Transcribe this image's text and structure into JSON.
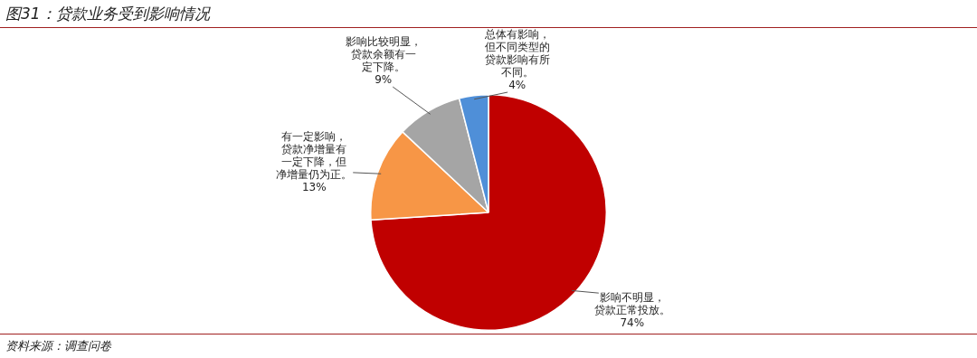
{
  "chart_data": {
    "type": "pie",
    "title": "图31：贷款业务受到影响情况",
    "categories": [
      "影响不明显，贷款正常投放。",
      "有一定影响，贷款净增量有一定下降，但净增量仍为正。",
      "影响比较明显，贷款余额有一定下降。",
      "总体有影响，但不同类型的贷款影响有所不同。"
    ],
    "values": [
      74,
      13,
      9,
      4
    ],
    "value_labels": [
      "74%",
      "13%",
      "9%",
      "4%"
    ],
    "colors": [
      "#c00000",
      "#f79646",
      "#a5a5a5",
      "#4f8fd8"
    ],
    "legend": false,
    "annotations": [
      "资料来源：调查问卷"
    ]
  }
}
